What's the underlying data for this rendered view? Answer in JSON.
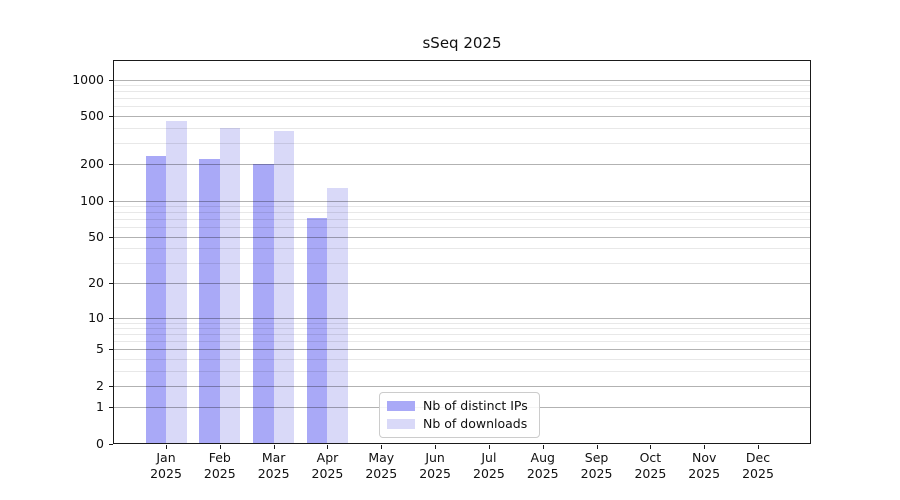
{
  "title": "sSeq 2025",
  "chart_data": {
    "type": "bar",
    "title": "sSeq 2025",
    "categories": [
      "Jan",
      "Feb",
      "Mar",
      "Apr",
      "May",
      "Jun",
      "Jul",
      "Aug",
      "Sep",
      "Oct",
      "Nov",
      "Dec"
    ],
    "year_label": "2025",
    "series": [
      {
        "name": "Nb of distinct IPs",
        "color": "#a9a9f7",
        "values": [
          234,
          222,
          201,
          72,
          null,
          null,
          null,
          null,
          null,
          null,
          null,
          null
        ]
      },
      {
        "name": "Nb of downloads",
        "color": "#d9d9f8",
        "values": [
          455,
          398,
          374,
          127,
          null,
          null,
          null,
          null,
          null,
          null,
          null,
          null
        ]
      }
    ],
    "yscale": "log1p",
    "ylim": [
      0,
      1450
    ],
    "y_major_ticks": [
      0,
      1,
      2,
      5,
      10,
      20,
      50,
      100,
      200,
      500,
      1000
    ],
    "y_minor_ticks": [
      3,
      4,
      6,
      7,
      8,
      9,
      30,
      40,
      60,
      70,
      80,
      90,
      300,
      400,
      600,
      700,
      800,
      900
    ],
    "grid": true,
    "legend_position": "bottom-center"
  },
  "colors": {
    "grid_major": "rgba(0,0,0,0.30)",
    "grid_minor": "rgba(0,0,0,0.09)",
    "spine": "#1a1a1a",
    "text": "#111111"
  }
}
